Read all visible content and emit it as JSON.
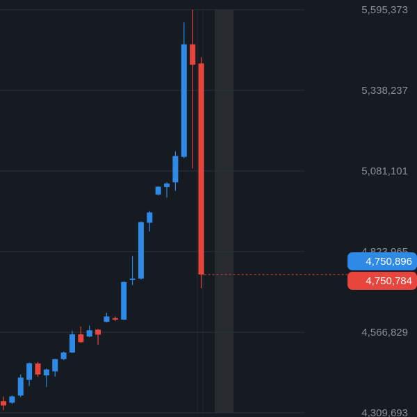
{
  "chart_data": {
    "type": "candlestick",
    "ylim": [
      4309693,
      5595373
    ],
    "grid": true,
    "y_ticks": [
      {
        "label": "5,595,373",
        "value": 5595373
      },
      {
        "label": "5,338,237",
        "value": 5338237
      },
      {
        "label": "5,081,101",
        "value": 5081101
      },
      {
        "label": "4,823,965",
        "value": 4823965
      },
      {
        "label": "4,566,829",
        "value": 4566829
      },
      {
        "label": "4,309,693",
        "value": 4309693
      }
    ],
    "candles": [
      {
        "open": 4347000,
        "close": 4333000,
        "high": 4362000,
        "low": 4318000
      },
      {
        "open": 4342000,
        "close": 4362000,
        "high": 4365000,
        "low": 4338000
      },
      {
        "open": 4365000,
        "close": 4422000,
        "high": 4432000,
        "low": 4360000
      },
      {
        "open": 4415000,
        "close": 4468000,
        "high": 4470000,
        "low": 4395000
      },
      {
        "open": 4467000,
        "close": 4432000,
        "high": 4472000,
        "low": 4425000
      },
      {
        "open": 4429000,
        "close": 4448000,
        "high": 4451000,
        "low": 4392000
      },
      {
        "open": 4442000,
        "close": 4481000,
        "high": 4482000,
        "low": 4425000
      },
      {
        "open": 4481000,
        "close": 4502000,
        "high": 4505000,
        "low": 4478000
      },
      {
        "open": 4502000,
        "close": 4560000,
        "high": 4572000,
        "low": 4500000
      },
      {
        "open": 4560000,
        "close": 4535000,
        "high": 4585000,
        "low": 4533000
      },
      {
        "open": 4553000,
        "close": 4573000,
        "high": 4588000,
        "low": 4551000
      },
      {
        "open": 4575000,
        "close": 4559000,
        "high": 4577000,
        "low": 4527000
      },
      {
        "open": 4600000,
        "close": 4617000,
        "high": 4629000,
        "low": 4598000
      },
      {
        "open": 4612000,
        "close": 4607000,
        "high": 4617000,
        "low": 4602000
      },
      {
        "open": 4607000,
        "close": 4727000,
        "high": 4729000,
        "low": 4606000
      },
      {
        "open": 4734000,
        "close": 4738000,
        "high": 4810000,
        "low": 4717000
      },
      {
        "open": 4738000,
        "close": 4918000,
        "high": 4920000,
        "low": 4735000
      },
      {
        "open": 4916000,
        "close": 4949000,
        "high": 4953000,
        "low": 4888000
      },
      {
        "open": 5006000,
        "close": 5031000,
        "high": 5032000,
        "low": 5003000
      },
      {
        "open": 5030000,
        "close": 5041000,
        "high": 5045000,
        "low": 4996000
      },
      {
        "open": 5045000,
        "close": 5129000,
        "high": 5144000,
        "low": 5018000
      },
      {
        "open": 5126000,
        "close": 5485000,
        "high": 5555000,
        "low": 5122000
      },
      {
        "open": 5485000,
        "close": 5420000,
        "high": 5595373,
        "low": 5089000
      },
      {
        "open": 5424000,
        "close": 4750784,
        "high": 5444000,
        "low": 4707000
      }
    ],
    "current_price": {
      "label": "4,750,896",
      "value": 4750896
    },
    "last_close": {
      "label": "4,750,784",
      "value": 4750784
    },
    "colors": {
      "up": "#2e8ae6",
      "down": "#e8453c",
      "grid": "#2c323b",
      "axis_text": "#8a8f98",
      "background": "#161b22",
      "highlight": "#272b30"
    }
  }
}
